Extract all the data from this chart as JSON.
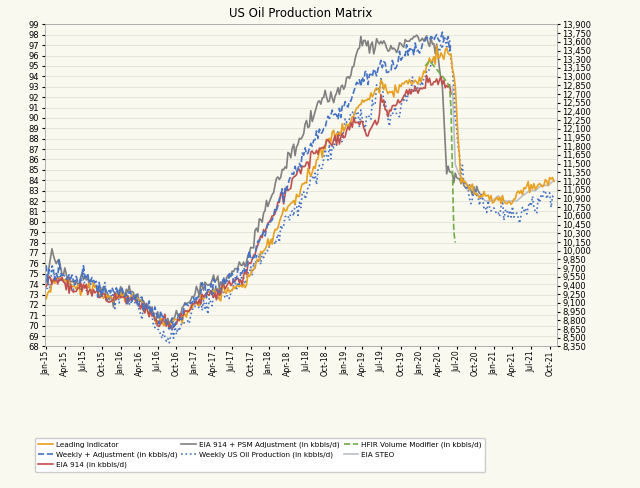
{
  "title": "US Oil Production Matrix",
  "background_color": "#FAF9F0",
  "ylim_left": [
    68,
    99
  ],
  "ylim_right": [
    8350,
    13900
  ],
  "left_ticks": [
    68,
    69,
    70,
    71,
    72,
    73,
    74,
    75,
    76,
    77,
    78,
    79,
    80,
    81,
    82,
    83,
    84,
    85,
    86,
    87,
    88,
    89,
    90,
    91,
    92,
    93,
    94,
    95,
    96,
    97,
    98,
    99
  ],
  "right_ticks": [
    8350,
    8500,
    8650,
    8800,
    8950,
    9100,
    9250,
    9400,
    9550,
    9700,
    9850,
    10000,
    10150,
    10300,
    10450,
    10600,
    10750,
    10900,
    11050,
    11200,
    11350,
    11500,
    11650,
    11800,
    11950,
    12100,
    12250,
    12400,
    12550,
    12700,
    12850,
    13000,
    13150,
    13300,
    13450,
    13600,
    13750,
    13900
  ],
  "x_labels": [
    "Jan-15",
    "Apr-15",
    "Jul-15",
    "Oct-15",
    "Jan-16",
    "Apr-16",
    "Jul-16",
    "Oct-16",
    "Jan-17",
    "Apr-17",
    "Jul-17",
    "Oct-17",
    "Jan-18",
    "Apr-18",
    "Jul-18",
    "Oct-18",
    "Jan-19",
    "Apr-19",
    "Jul-19",
    "Oct-19",
    "Jan-20",
    "Apr-20",
    "Jul-20",
    "Oct-20",
    "Jan-21",
    "Apr-21",
    "Jul-21",
    "Oct-21"
  ],
  "n_weeks": 357,
  "series_order": [
    "leading_indicator",
    "eia_914_psm",
    "weekly_adjustment",
    "eia_914",
    "weekly_us",
    "hfir",
    "eia_steo"
  ],
  "series": {
    "leading_indicator": {
      "label": "Leading Indicator",
      "color": "#E8A020",
      "linestyle": "-",
      "linewidth": 1.2,
      "zorder": 3
    },
    "weekly_adjustment": {
      "label": "Weekly + Adjustment (in kbbls/d)",
      "color": "#4472C4",
      "linestyle": "--",
      "linewidth": 1.2,
      "zorder": 4
    },
    "eia_914": {
      "label": "EIA 914 (in kbbls/d)",
      "color": "#C0504D",
      "linestyle": "-",
      "linewidth": 1.2,
      "zorder": 3
    },
    "eia_914_psm": {
      "label": "EIA 914 + PSM Adjustment (in kbbls/d)",
      "color": "#808080",
      "linestyle": "-",
      "linewidth": 1.2,
      "zorder": 2
    },
    "weekly_us": {
      "label": "Weekly US Oil Production (in kbbls/d)",
      "color": "#4472C4",
      "linestyle": ":",
      "linewidth": 1.2,
      "zorder": 2
    },
    "hfir": {
      "label": "HFIR Volume Modifier (in kbbls/d)",
      "color": "#70AD47",
      "linestyle": "--",
      "linewidth": 1.2,
      "zorder": 4
    },
    "eia_steo": {
      "label": "EIA STEO",
      "color": "#BBBFC8",
      "linestyle": "-",
      "linewidth": 1.2,
      "zorder": 2
    }
  },
  "legend_order": [
    "leading_indicator",
    "weekly_adjustment",
    "eia_914",
    "eia_914_psm",
    "weekly_us",
    "hfir",
    "eia_steo"
  ]
}
